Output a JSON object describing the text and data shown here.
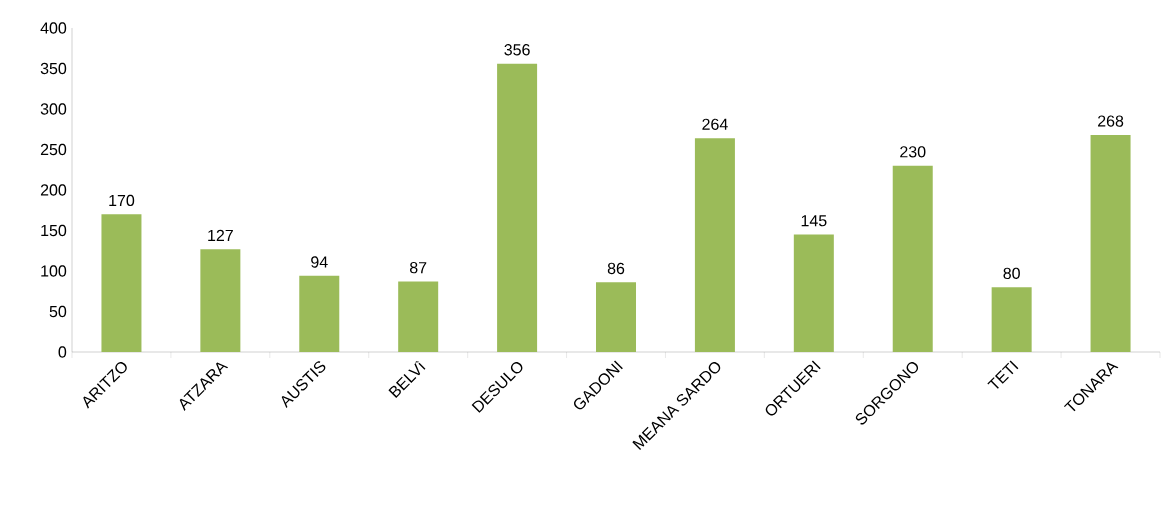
{
  "chart_data": {
    "type": "bar",
    "categories": [
      "ARITZO",
      "ATZARA",
      "AUSTIS",
      "BELVì",
      "DESULO",
      "GADONI",
      "MEANA SARDO",
      "ORTUERI",
      "SORGONO",
      "TETI",
      "TONARA"
    ],
    "values": [
      170,
      127,
      94,
      87,
      356,
      86,
      264,
      145,
      230,
      80,
      268
    ],
    "color": "#9bbb59",
    "ylim": [
      0,
      400
    ],
    "yticks": [
      0,
      50,
      100,
      150,
      200,
      250,
      300,
      350,
      400
    ],
    "data_labels": true
  }
}
